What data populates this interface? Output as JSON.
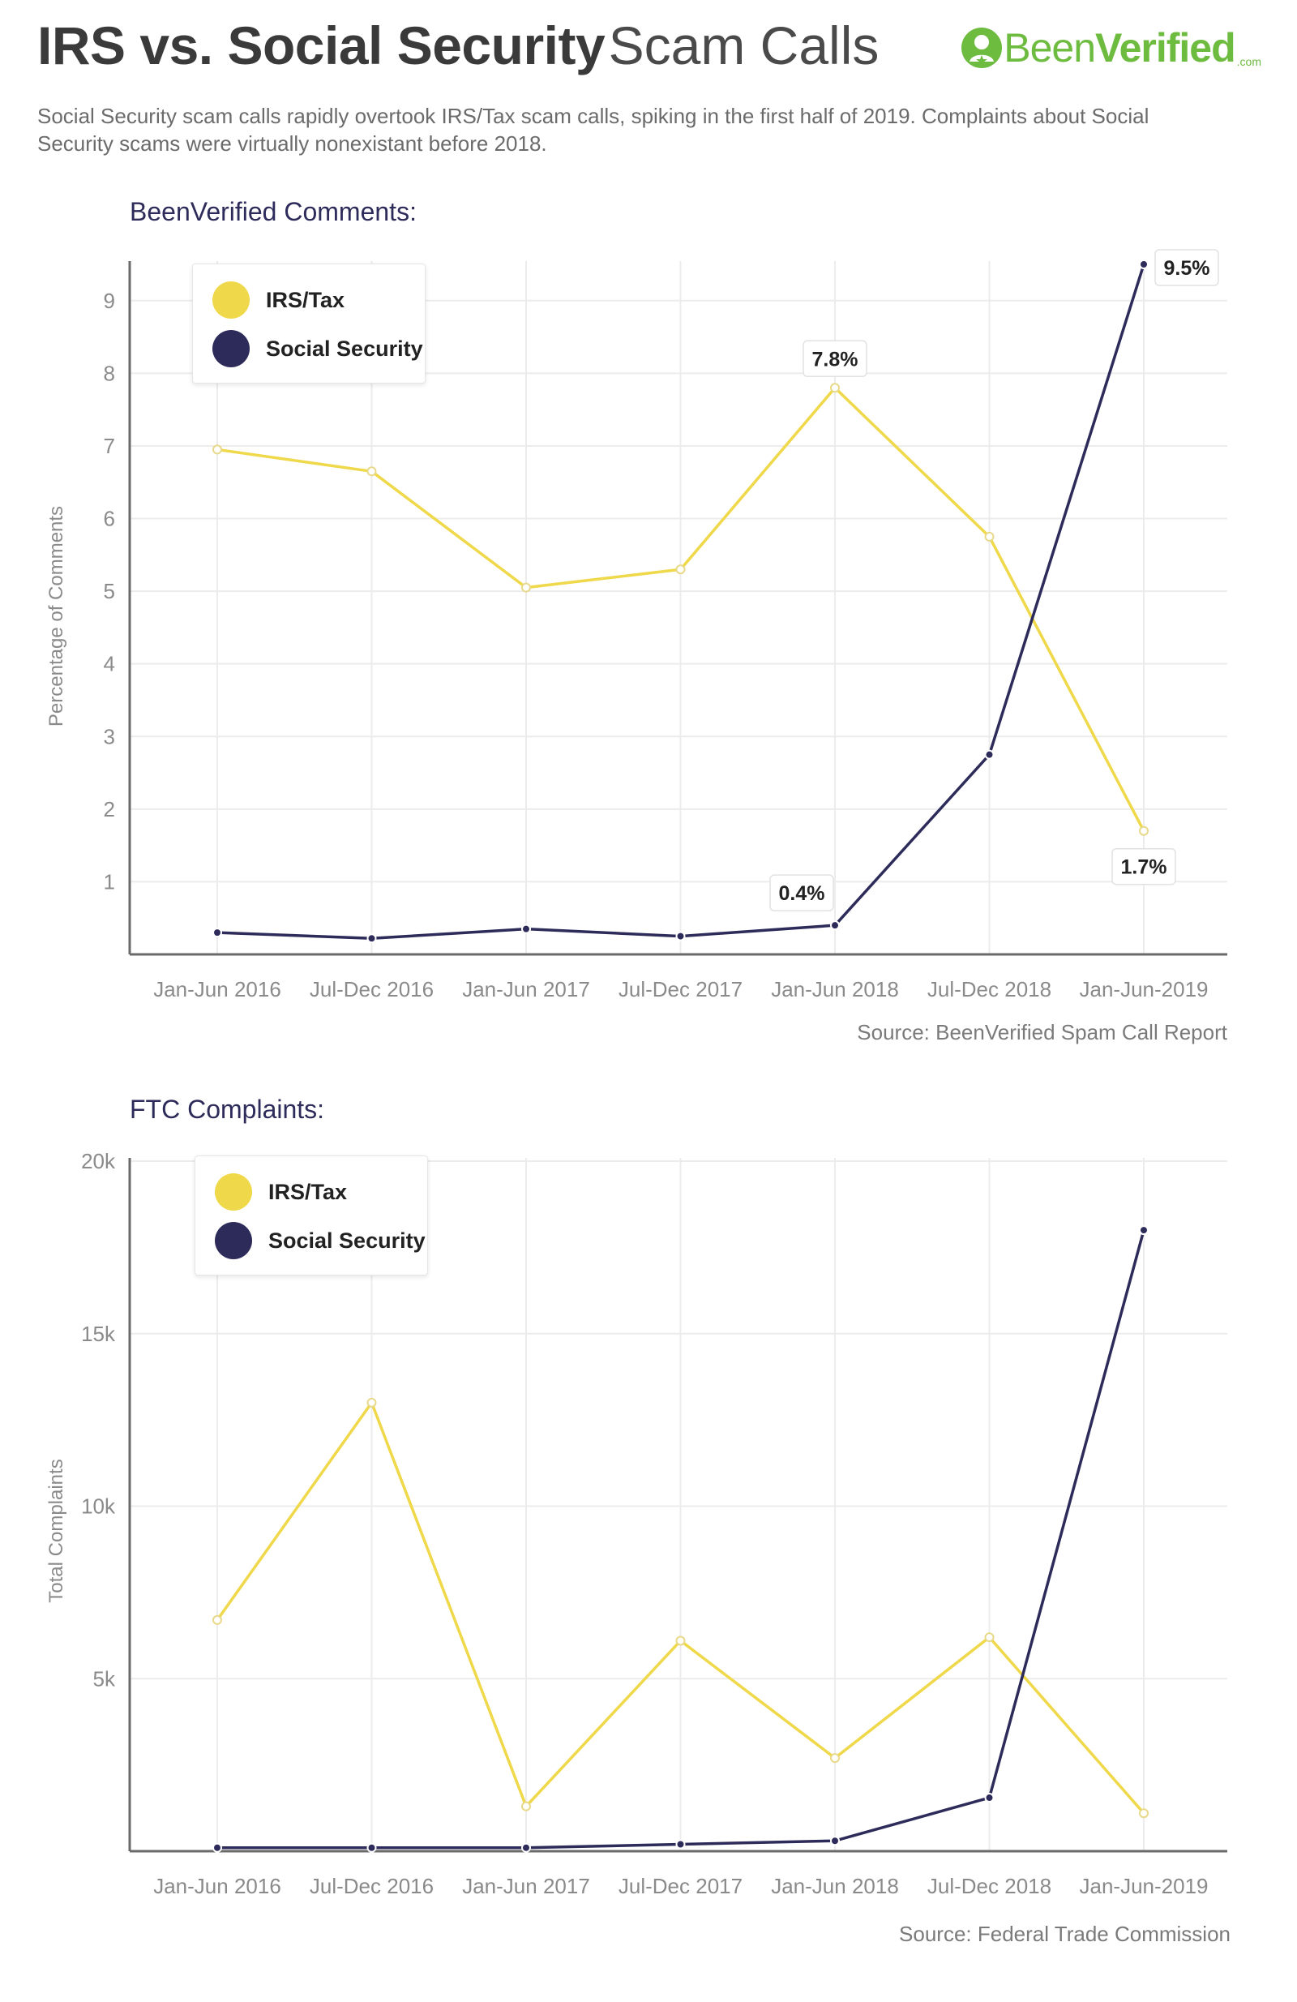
{
  "header": {
    "title_bold": "IRS vs. Social Security",
    "title_light": "Scam Calls",
    "logo_been": "Been",
    "logo_verified": "Verified",
    "logo_com": ".com",
    "subtitle": "Social Security scam calls rapidly overtook IRS/Tax scam calls, spiking in the first half of 2019. Complaints about Social Security scams were virtually nonexistant before 2018."
  },
  "colors": {
    "irs": "#efd84a",
    "social_security": "#2d2b5a",
    "grid": "#ececec",
    "axis": "#8a8a8a",
    "brand": "#6dbb3f"
  },
  "chart_data": [
    {
      "type": "line",
      "section_title": "BeenVerified Comments:",
      "ylabel": "Percentage of Comments",
      "source": "Source: BeenVerified Spam Call Report",
      "categories": [
        "Jan-Jun 2016",
        "Jul-Dec 2016",
        "Jan-Jun 2017",
        "Jul-Dec 2017",
        "Jan-Jun 2018",
        "Jul-Dec 2018",
        "Jan-Jun-2019"
      ],
      "ylim": [
        0,
        9.5
      ],
      "yticks": [
        1,
        2,
        3,
        4,
        5,
        6,
        7,
        8,
        9
      ],
      "ytick_labels": [
        "1",
        "2",
        "3",
        "4",
        "5",
        "6",
        "7",
        "8",
        "9"
      ],
      "series": [
        {
          "name": "IRS/Tax",
          "values": [
            6.95,
            6.65,
            5.05,
            5.3,
            7.8,
            5.75,
            1.7
          ]
        },
        {
          "name": "Social Security",
          "values": [
            0.3,
            0.22,
            0.35,
            0.25,
            0.4,
            2.75,
            9.5
          ]
        }
      ],
      "annotations": [
        {
          "series": 0,
          "index": 4,
          "text": "7.8%",
          "pos": "above"
        },
        {
          "series": 0,
          "index": 6,
          "text": "1.7%",
          "pos": "below"
        },
        {
          "series": 1,
          "index": 4,
          "text": "0.4%",
          "pos": "above-left"
        },
        {
          "series": 1,
          "index": 6,
          "text": "9.5%",
          "pos": "right"
        }
      ],
      "legend": "top-left",
      "grid": true
    },
    {
      "type": "line",
      "section_title": "FTC Complaints:",
      "ylabel": "Total Complaints",
      "source": "Source: Federal Trade Commission",
      "categories": [
        "Jan-Jun 2016",
        "Jul-Dec 2016",
        "Jan-Jun 2017",
        "Jul-Dec 2017",
        "Jan-Jun 2018",
        "Jul-Dec 2018",
        "Jan-Jun-2019"
      ],
      "ylim": [
        0,
        20000
      ],
      "yticks": [
        5000,
        10000,
        15000,
        20000
      ],
      "ytick_labels": [
        "5k",
        "10k",
        "15k",
        "20k"
      ],
      "series": [
        {
          "name": "IRS/Tax",
          "values": [
            6700,
            13000,
            1300,
            6100,
            2700,
            6200,
            1100
          ]
        },
        {
          "name": "Social Security",
          "values": [
            100,
            100,
            100,
            200,
            300,
            1550,
            18000
          ]
        }
      ],
      "annotations": [],
      "legend": "top-left",
      "grid": true
    }
  ]
}
